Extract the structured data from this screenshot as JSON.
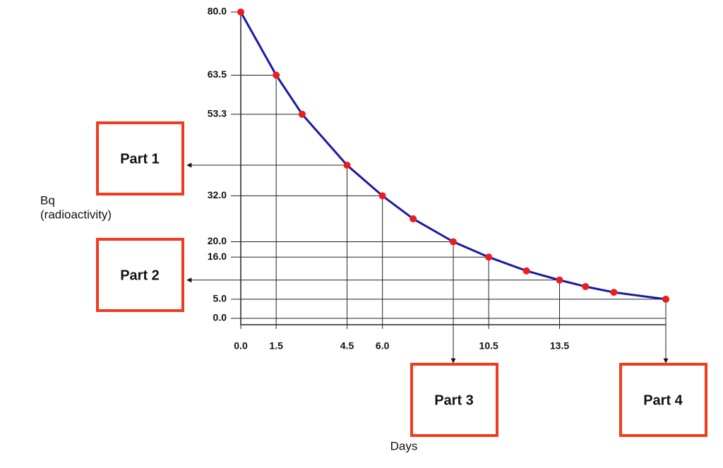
{
  "chart_data": {
    "type": "line",
    "xlabel": "Days",
    "ylabel": [
      "Bq",
      "(radioactivity)"
    ],
    "x": [
      0,
      1.5,
      2.6,
      4.5,
      6,
      7.3,
      9,
      10.5,
      12.1,
      13.5,
      14.6,
      15.8,
      18
    ],
    "series": [
      {
        "color": "#1a1aa6",
        "marker_color": "#ee1c1c",
        "values": [
          80,
          63.5,
          53.3,
          40,
          32,
          26,
          20,
          16,
          12.4,
          10,
          8.3,
          6.8,
          5
        ]
      }
    ],
    "xlim": [
      0,
      18
    ],
    "ylim": [
      0,
      80
    ],
    "xticks": [
      {
        "value": 0,
        "label": "0.0"
      },
      1.5,
      4.5,
      {
        "value": 6,
        "label": "6.0"
      },
      10.5,
      13.5
    ],
    "yticks": [
      {
        "value": 0,
        "label": "0.0"
      },
      {
        "value": 5,
        "label": "5.0"
      },
      {
        "value": 16,
        "label": "16.0"
      },
      {
        "value": 20,
        "label": "20.0"
      },
      {
        "value": 32,
        "label": "32.0"
      },
      53.3,
      63.5,
      {
        "value": 80,
        "label": "80.0"
      }
    ],
    "annotations": [
      "Part 1",
      "Part 2",
      "Part 3",
      "Part 4"
    ]
  }
}
